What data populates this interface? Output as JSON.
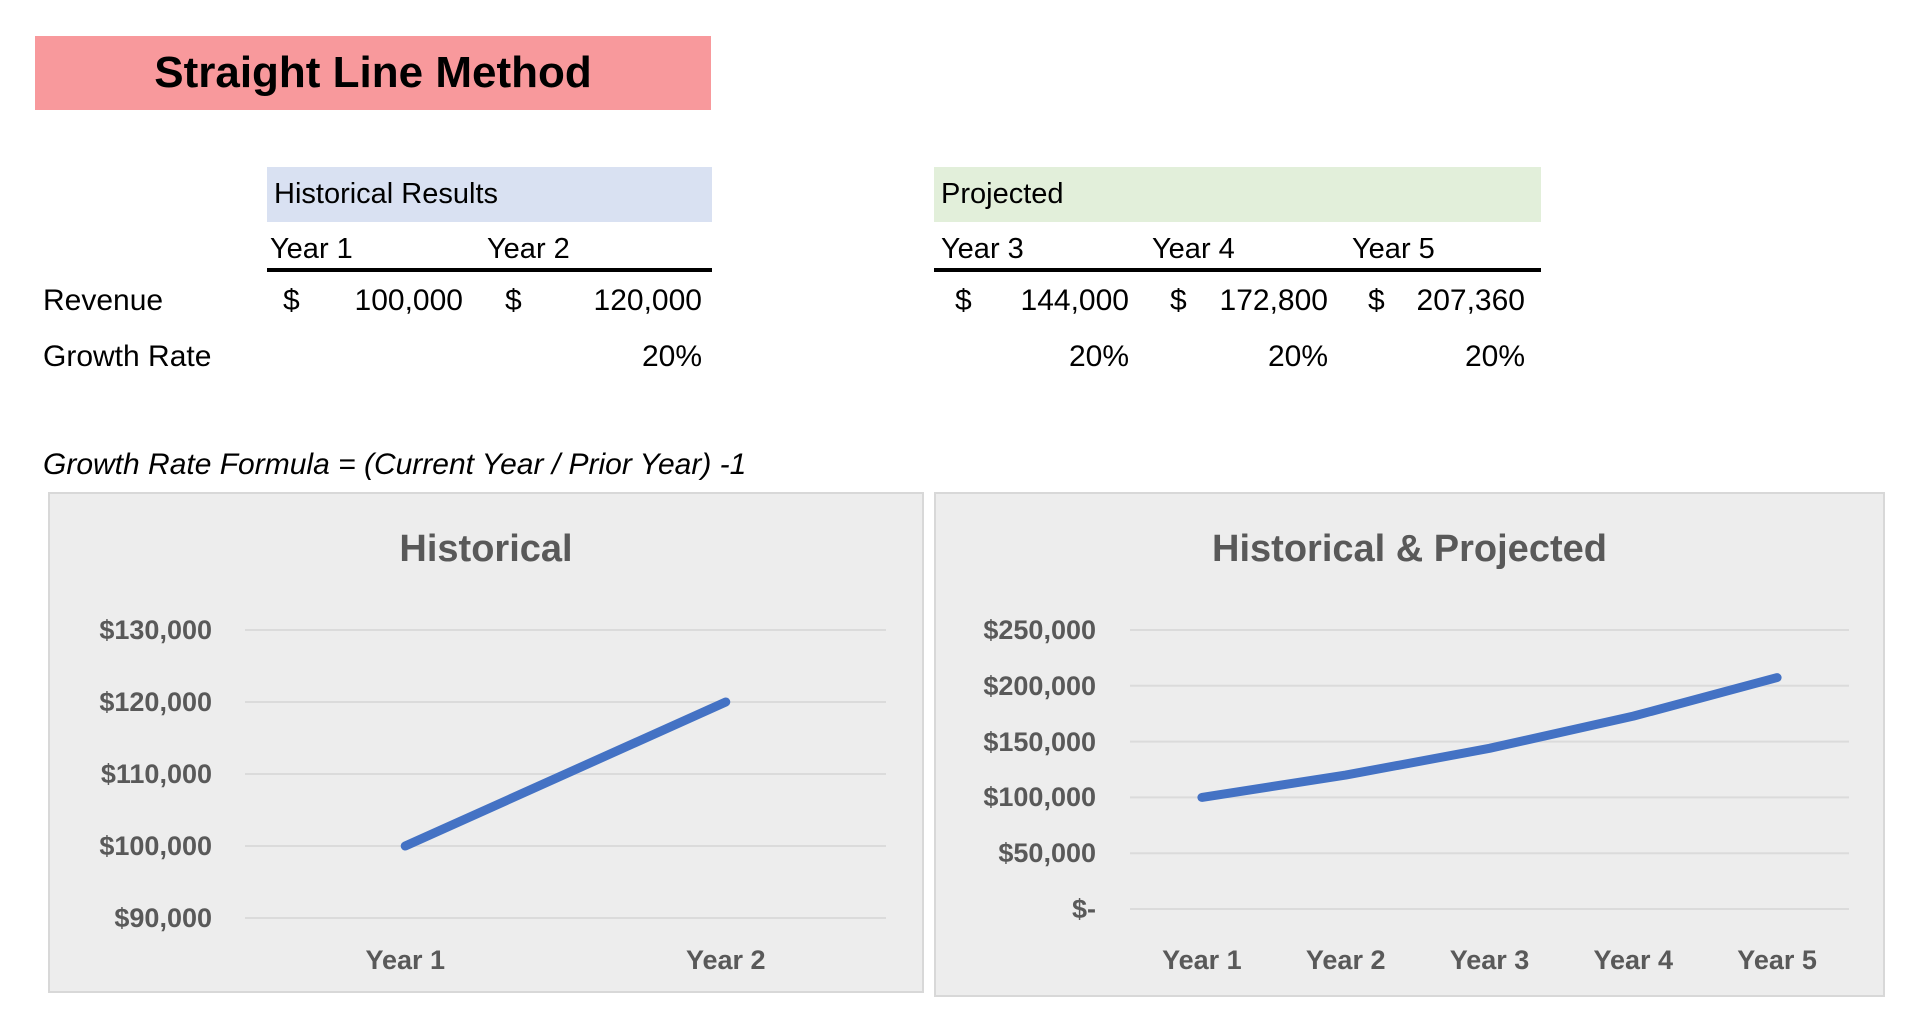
{
  "title": "Straight Line Method",
  "table": {
    "section_headers": {
      "historical": "Historical Results",
      "projected": "Projected"
    },
    "year_headers": [
      "Year 1",
      "Year 2",
      "Year 3",
      "Year 4",
      "Year 5"
    ],
    "row_labels": [
      "Revenue",
      "Growth Rate"
    ],
    "revenue_values": [
      {
        "currency": "$",
        "amount": "100,000"
      },
      {
        "currency": "$",
        "amount": "120,000"
      },
      {
        "currency": "$",
        "amount": "144,000"
      },
      {
        "currency": "$",
        "amount": "172,800"
      },
      {
        "currency": "$",
        "amount": "207,360"
      }
    ],
    "growth_values": [
      "",
      "20%",
      "20%",
      "20%",
      "20%"
    ]
  },
  "formula_note": "Growth Rate Formula = (Current Year / Prior Year) -1",
  "colors": {
    "banner_background": "#F8999C",
    "historical_band_background": "#D9E1F2",
    "projected_band_background": "#E2EFDA",
    "chart_background": "#EDEDED",
    "chart_text": "#595959",
    "line_blue": "#4472C4"
  },
  "chart_data": [
    {
      "type": "line",
      "title": "Historical",
      "categories": [
        "Year 1",
        "Year 2"
      ],
      "values": [
        100000,
        120000
      ],
      "ylim": [
        90000,
        130000
      ],
      "ytick_step": 10000,
      "ytick_labels_top_to_bottom": [
        "$130,000",
        "$120,000",
        "$110,000",
        "$100,000",
        "$90,000"
      ],
      "grid": true,
      "legend": "none",
      "line_color": "#4472C4"
    },
    {
      "type": "line",
      "title": "Historical & Projected",
      "categories": [
        "Year 1",
        "Year 2",
        "Year 3",
        "Year 4",
        "Year 5"
      ],
      "values": [
        100000,
        120000,
        144000,
        172800,
        207360
      ],
      "ylim": [
        0,
        250000
      ],
      "ytick_step": 50000,
      "ytick_labels_top_to_bottom": [
        "$250,000",
        "$200,000",
        "$150,000",
        "$100,000",
        "$50,000",
        "$-"
      ],
      "grid": true,
      "legend": "none",
      "line_color": "#4472C4"
    }
  ]
}
